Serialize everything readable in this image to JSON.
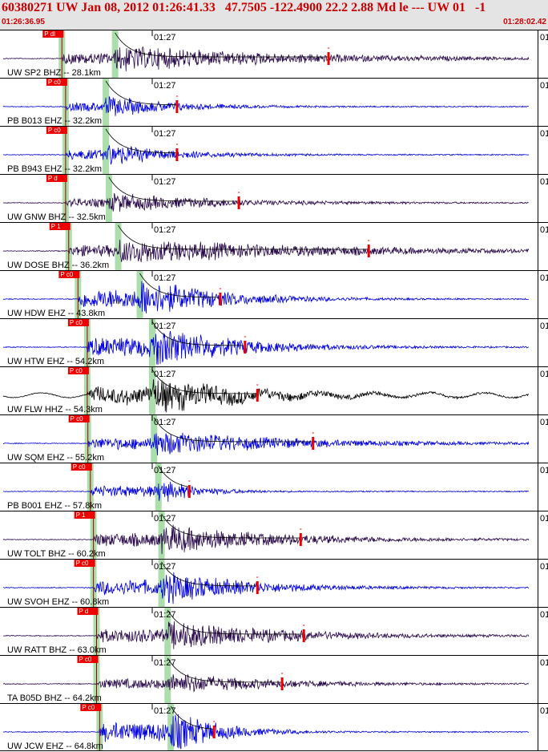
{
  "header": {
    "title": "60380271 UW Jan 08, 2012 01:26:41.33   47.7505 -122.4900 22.2 2.88 Md le --- UW 01   -1",
    "start_time": "01:26:36.95",
    "end_time": "01:28:02.42"
  },
  "colors": {
    "header_bg": "#e4e4e4",
    "title_text": "#cc0000",
    "trace_blue": "#0000dd",
    "trace_purple": "#2a0a4a",
    "trace_black": "#000000",
    "pick_flag": "#ee0000",
    "phase_band": "#9ed89e",
    "coda_curve": "#000000",
    "coda_fit": "#cc4444"
  },
  "chart_data": {
    "type": "line",
    "title": "60380271 UW Jan 08, 2012 01:26:41.33   47.7505 -122.4900 22.2 2.88 Md le --- UW 01   -1",
    "x_range": [
      "01:26:36.95",
      "01:28:02.42"
    ],
    "x_range_seconds": [
      36.95,
      122.42
    ],
    "minute_tick_label": "01:27",
    "minute_tick_seconds": 60,
    "traces": [
      {
        "label": "UW SP2 BHZ -- 28.1km",
        "color": "purple",
        "p_flag": "P dl",
        "p_time": 45.4,
        "s_time": 54.0,
        "coda_end": 88.5,
        "amp": 0.5
      },
      {
        "label": "PB B013 EHZ -- 32.2km",
        "color": "blue",
        "p_flag": "P c0",
        "p_time": 46.0,
        "s_time": 52.5,
        "coda_end": 64.0,
        "amp": 0.35
      },
      {
        "label": "PB B943 EHZ -- 32.2km",
        "color": "blue",
        "p_flag": "P c0",
        "p_time": 46.0,
        "s_time": 52.5,
        "coda_end": 64.0,
        "amp": 0.4
      },
      {
        "label": "UW GNW BHZ -- 32.5km",
        "color": "purple",
        "p_flag": "P d",
        "p_time": 46.0,
        "s_time": 53.0,
        "coda_end": 74.0,
        "amp": 0.3
      },
      {
        "label": "UW DOSE BHZ -- 36.2km",
        "color": "purple",
        "p_flag": "P 1",
        "p_time": 46.5,
        "s_time": 54.5,
        "coda_end": 95.0,
        "amp": 0.5
      },
      {
        "label": "UW HDW EHZ -- 43.8km",
        "color": "blue",
        "p_flag": "P c0",
        "p_time": 48.0,
        "s_time": 58.0,
        "coda_end": 71.0,
        "amp": 1.0
      },
      {
        "label": "UW HTW EHZ -- 54.2km",
        "color": "blue",
        "p_flag": "P c0",
        "p_time": 49.5,
        "s_time": 60.0,
        "coda_end": 75.0,
        "amp": 0.95
      },
      {
        "label": "UW FLW HHZ -- 54.3km",
        "color": "black",
        "p_flag": "P c0",
        "p_time": 49.5,
        "s_time": 60.0,
        "coda_end": 77.0,
        "amp": 0.8
      },
      {
        "label": "UW SQM EHZ -- 55.2km",
        "color": "blue",
        "p_flag": "P c0",
        "p_time": 49.6,
        "s_time": 60.3,
        "coda_end": 86.0,
        "amp": 0.5
      },
      {
        "label": "PB B001 EHZ -- 57.8km",
        "color": "blue",
        "p_flag": "P c0",
        "p_time": 50.0,
        "s_time": 61.0,
        "coda_end": 66.0,
        "amp": 0.45
      },
      {
        "label": "UW TOLT BHZ -- 60.2km",
        "color": "purple",
        "p_flag": "P 1",
        "p_time": 50.5,
        "s_time": 61.5,
        "coda_end": 84.0,
        "amp": 0.6
      },
      {
        "label": "UW SVOH EHZ -- 60.8km",
        "color": "blue",
        "p_flag": "P c0",
        "p_time": 50.5,
        "s_time": 61.5,
        "coda_end": 77.0,
        "amp": 0.7
      },
      {
        "label": "UW RATT BHZ -- 63.0km",
        "color": "purple",
        "p_flag": "P d",
        "p_time": 51.0,
        "s_time": 62.5,
        "coda_end": 84.5,
        "amp": 0.6
      },
      {
        "label": "TA B05D BHZ -- 64.2km",
        "color": "purple",
        "p_flag": "P c0",
        "p_time": 51.0,
        "s_time": 62.5,
        "coda_end": 81.0,
        "amp": 0.4
      },
      {
        "label": "UW JCW EHZ -- 64.8km",
        "color": "blue",
        "p_flag": "P c0",
        "p_time": 51.5,
        "s_time": 63.0,
        "coda_end": 70.0,
        "amp": 1.0
      }
    ]
  }
}
